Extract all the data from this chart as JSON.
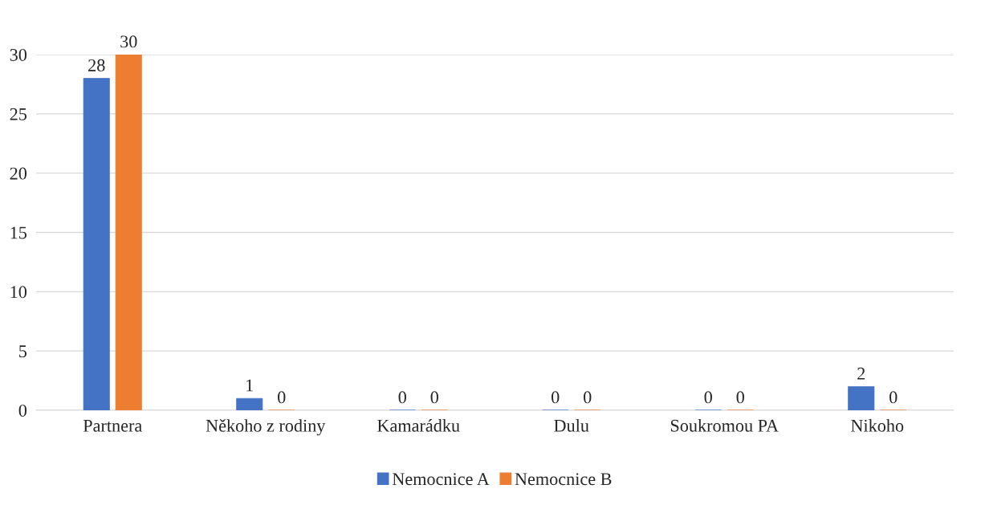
{
  "chart_data": {
    "type": "bar",
    "categories": [
      "Partnera",
      "Někoho z rodiny",
      "Kamarádku",
      "Dulu",
      "Soukromou PA",
      "Nikoho"
    ],
    "series": [
      {
        "name": "Nemocnice A",
        "color": "#4472c4",
        "values": [
          28,
          1,
          0,
          0,
          0,
          2
        ]
      },
      {
        "name": "Nemocnice B",
        "color": "#ed7d31",
        "values": [
          30,
          0,
          0,
          0,
          0,
          0
        ]
      }
    ],
    "ylim": [
      0,
      30
    ],
    "yticks": [
      0,
      5,
      10,
      15,
      20,
      25,
      30
    ],
    "grid": "y",
    "legend": "bottom",
    "data_labels": true
  }
}
